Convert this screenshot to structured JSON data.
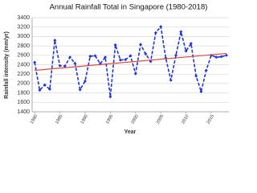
{
  "chart_data": {
    "type": "line",
    "title": "Annual Rainfall Total in Singapore (1980-2018)",
    "x_label": "Year",
    "y_label": "Rainfall intensity (mm/yr)",
    "x": [
      1980,
      1981,
      1982,
      1983,
      1984,
      1985,
      1986,
      1987,
      1988,
      1989,
      1990,
      1991,
      1992,
      1993,
      1994,
      1995,
      1996,
      1997,
      1998,
      1999,
      2000,
      2001,
      2002,
      2003,
      2004,
      2005,
      2006,
      2007,
      2008,
      2009,
      2010,
      2011,
      2012,
      2013,
      2014,
      2015,
      2016,
      2017,
      2018
    ],
    "series": [
      {
        "color": "#1f35d8",
        "dashed": true,
        "marker": "diamond",
        "values": [
          2450,
          1860,
          1970,
          1880,
          2920,
          2380,
          2370,
          2560,
          2430,
          1870,
          2050,
          2580,
          2590,
          2420,
          2560,
          1720,
          2820,
          2500,
          2510,
          2590,
          2210,
          2830,
          2630,
          2470,
          3080,
          3210,
          2540,
          2070,
          2600,
          3100,
          2690,
          2850,
          2160,
          1830,
          2280,
          2600,
          2560,
          2570,
          2600
        ]
      },
      {
        "color": "#e8463a",
        "dashed": false,
        "marker": "none",
        "x": [
          1980,
          2018
        ],
        "values": [
          2280,
          2640
        ]
      }
    ],
    "xlim": [
      1979.5,
      2018.5
    ],
    "xticks": [
      1980,
      1985,
      1990,
      1995,
      2000,
      2005,
      2010,
      2015
    ],
    "ylim": [
      1400,
      3400
    ],
    "yticks": [
      1400,
      1600,
      1800,
      2000,
      2200,
      2400,
      2600,
      2800,
      3000,
      3200,
      3400
    ],
    "grid": true
  }
}
